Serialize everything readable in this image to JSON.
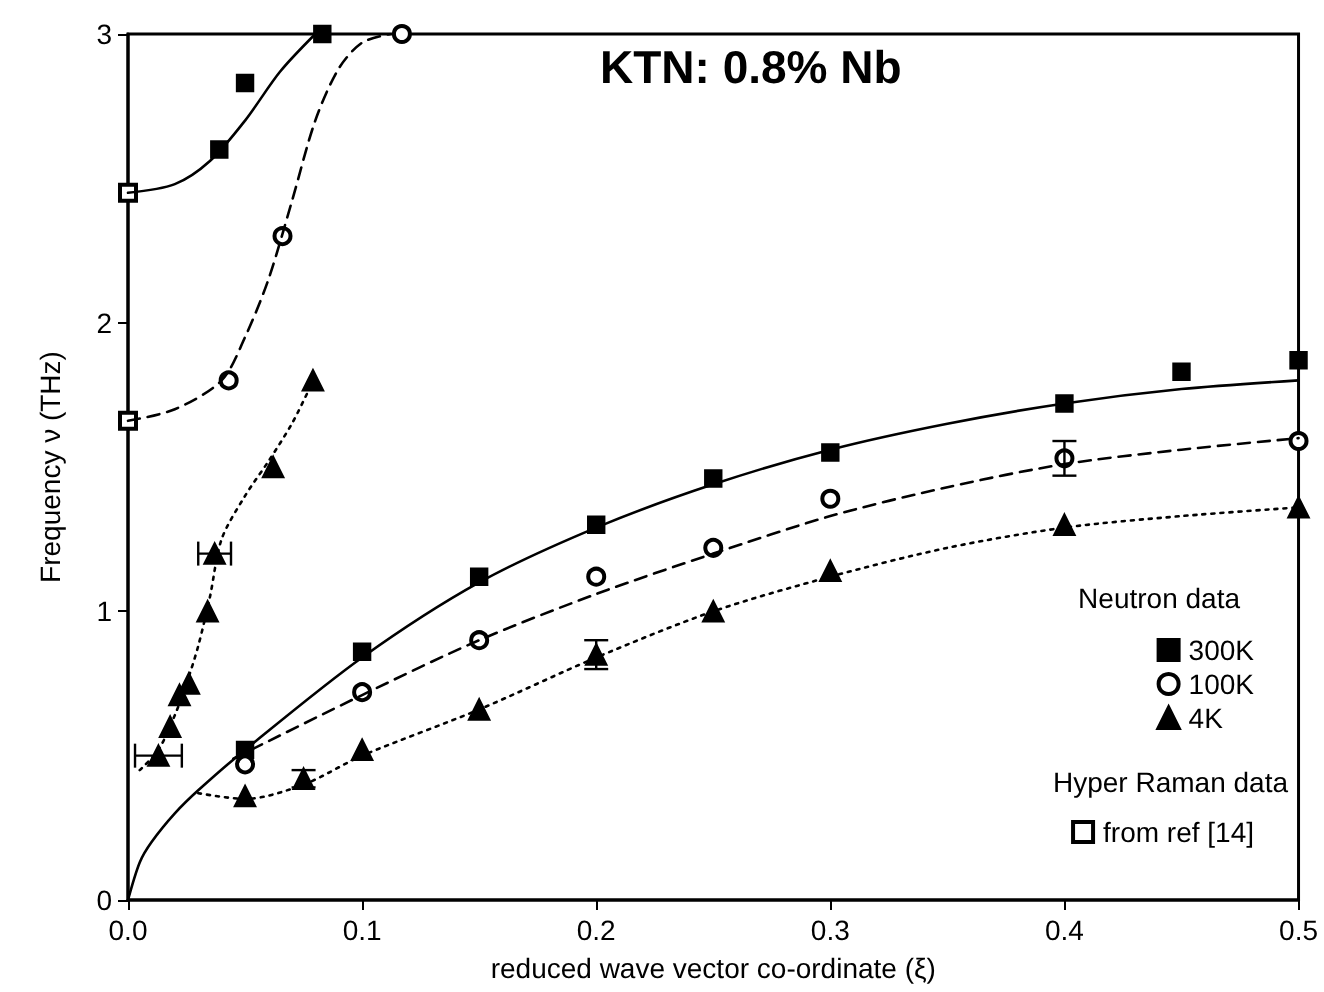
{
  "chart_data": {
    "type": "scatter",
    "title": "KTN: 0.8% Nb",
    "xlabel": "reduced wave vector co-ordinate (ξ)",
    "ylabel": "Frequency ν (THz)",
    "legend_title": "Neutron data",
    "annotations": [
      "Hyper Raman data"
    ],
    "xlim": [
      0,
      0.5
    ],
    "xticks": [
      {
        "value": 0,
        "label": "0.0"
      },
      {
        "value": 0.1,
        "label": "0.1"
      },
      {
        "value": 0.2,
        "label": "0.2"
      },
      {
        "value": 0.3,
        "label": "0.3"
      },
      {
        "value": 0.4,
        "label": "0.4"
      },
      {
        "value": 0.5,
        "label": "0.5"
      }
    ],
    "ylim": [
      0,
      3
    ],
    "yticks": [
      0,
      1,
      2,
      3
    ],
    "grid": false,
    "legend": "bottom right",
    "series": [
      {
        "name": "300K",
        "color": "#000000",
        "marker": "square",
        "x": [
          0.039,
          0.05,
          0.083,
          0.05,
          0.1,
          0.15,
          0.2,
          0.25,
          0.3,
          0.4,
          0.45,
          0.5
        ],
        "values": [
          2.6,
          2.83,
          3.0,
          0.52,
          0.86,
          1.12,
          1.3,
          1.46,
          1.55,
          1.72,
          1.83,
          1.87
        ]
      },
      {
        "name": "100K",
        "color": "#000000",
        "marker": "circle",
        "x": [
          0.043,
          0.066,
          0.117,
          0.05,
          0.1,
          0.15,
          0.2,
          0.25,
          0.3,
          0.4,
          0.5
        ],
        "values": [
          1.8,
          2.3,
          3.0,
          0.47,
          0.72,
          0.9,
          1.12,
          1.22,
          1.39,
          1.53,
          1.59
        ],
        "errors": [
          null,
          null,
          null,
          null,
          null,
          null,
          null,
          null,
          null,
          0.06,
          null
        ]
      },
      {
        "name": "4K",
        "color": "#000000",
        "marker": "triangle",
        "x": [
          0.013,
          0.018,
          0.022,
          0.026,
          0.034,
          0.037,
          0.062,
          0.079,
          0.05,
          0.075,
          0.1,
          0.15,
          0.2,
          0.25,
          0.3,
          0.4,
          0.5
        ],
        "values": [
          0.5,
          0.6,
          0.71,
          0.75,
          1.0,
          1.2,
          1.5,
          1.8,
          0.36,
          0.42,
          0.52,
          0.66,
          0.85,
          1.0,
          1.14,
          1.3,
          1.36
        ],
        "errors": [
          null,
          null,
          null,
          null,
          null,
          null,
          null,
          null,
          null,
          0.03,
          null,
          null,
          0.05,
          null,
          null,
          null,
          null
        ],
        "xerrors": [
          0.01,
          null,
          null,
          null,
          null,
          0.007,
          null,
          null,
          null,
          null,
          null,
          null,
          null,
          null,
          null,
          null,
          null
        ]
      },
      {
        "name": "from ref [14]",
        "color": "#000000",
        "marker": "square",
        "x": [
          0,
          0
        ],
        "values": [
          2.45,
          1.66
        ]
      },
      {
        "type": "line",
        "color": "#000000",
        "line_style": "solid",
        "x": [
          0,
          0.02,
          0.035,
          0.05,
          0.065,
          0.08
        ],
        "values": [
          2.45,
          2.48,
          2.56,
          2.7,
          2.87,
          3.0
        ]
      },
      {
        "type": "line",
        "color": "#000000",
        "line_style": "solid",
        "x": [
          0,
          0.005,
          0.01,
          0.02,
          0.03,
          0.05,
          0.1,
          0.15,
          0.2,
          0.25,
          0.3,
          0.35,
          0.4,
          0.45,
          0.5
        ],
        "values": [
          0,
          0.13,
          0.2,
          0.3,
          0.38,
          0.52,
          0.84,
          1.1,
          1.29,
          1.44,
          1.56,
          1.65,
          1.72,
          1.77,
          1.8
        ]
      },
      {
        "type": "line",
        "color": "#000000",
        "line_style": "dashed",
        "x": [
          0,
          0.02,
          0.04,
          0.05,
          0.06,
          0.07,
          0.08,
          0.09,
          0.1,
          0.112
        ],
        "values": [
          1.66,
          1.7,
          1.8,
          1.95,
          2.15,
          2.42,
          2.7,
          2.88,
          2.97,
          3.0
        ]
      },
      {
        "type": "line",
        "color": "#000000",
        "line_style": "dashed",
        "x": [
          0.045,
          0.05,
          0.1,
          0.15,
          0.2,
          0.25,
          0.3,
          0.35,
          0.4,
          0.45,
          0.5
        ],
        "values": [
          0.49,
          0.51,
          0.71,
          0.9,
          1.06,
          1.2,
          1.33,
          1.43,
          1.51,
          1.56,
          1.6
        ]
      },
      {
        "type": "line",
        "color": "#000000",
        "line_style": "dotted",
        "x": [
          0.005,
          0.013,
          0.02,
          0.025,
          0.03,
          0.035,
          0.04,
          0.05,
          0.06,
          0.07,
          0.078
        ],
        "values": [
          0.45,
          0.52,
          0.64,
          0.75,
          0.88,
          1.05,
          1.25,
          1.4,
          1.52,
          1.65,
          1.78
        ]
      },
      {
        "type": "line",
        "color": "#000000",
        "line_style": "dotted",
        "x": [
          0.03,
          0.05,
          0.075,
          0.1,
          0.15,
          0.2,
          0.25,
          0.3,
          0.35,
          0.4,
          0.45,
          0.5
        ],
        "values": [
          0.37,
          0.35,
          0.4,
          0.5,
          0.66,
          0.84,
          1.0,
          1.12,
          1.22,
          1.29,
          1.33,
          1.36
        ]
      }
    ]
  }
}
